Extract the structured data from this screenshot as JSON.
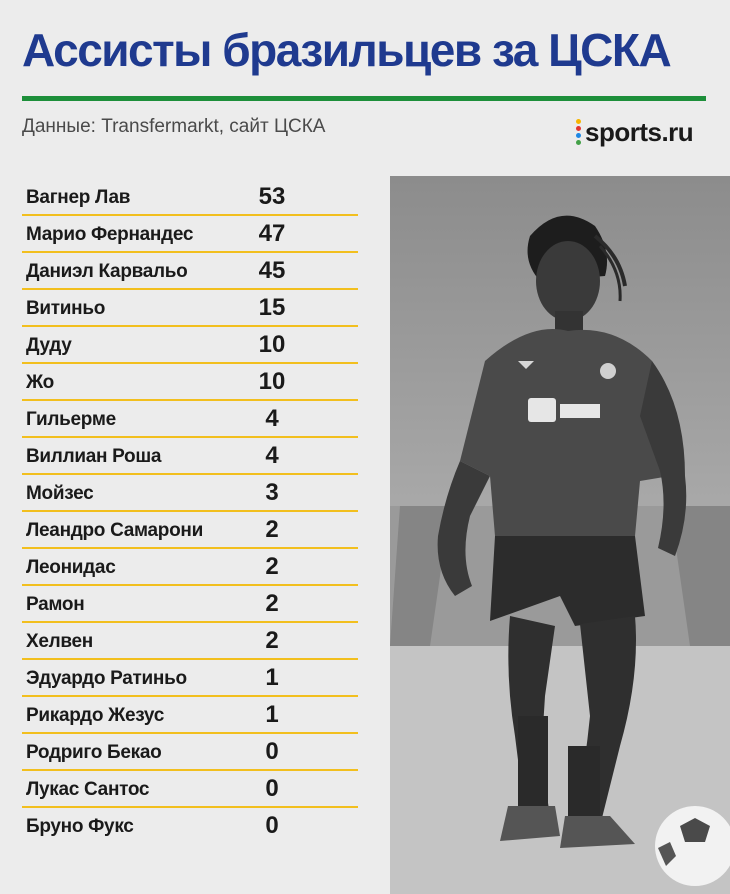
{
  "title": "Ассисты бразильцев за ЦСКА",
  "source": "Данные: Transfermarkt, сайт ЦСКА",
  "logo": {
    "text": "sports.ru",
    "dot_colors": [
      "#f7b500",
      "#e3342f",
      "#1e88e5",
      "#43a047"
    ]
  },
  "colors": {
    "title": "#1f3a8f",
    "rule": "#1d8f3a",
    "row_divider": "#f2bf1e"
  },
  "chart_data": {
    "type": "table",
    "columns": [
      "",
      ""
    ],
    "rows": [
      {
        "player": "Вагнер Лав",
        "assists": "53"
      },
      {
        "player": "Марио Фернандес",
        "assists": "47"
      },
      {
        "player": "Даниэл Карвальо",
        "assists": "45"
      },
      {
        "player": "Витиньо",
        "assists": "15"
      },
      {
        "player": "Дуду",
        "assists": "10"
      },
      {
        "player": "Жо",
        "assists": "10"
      },
      {
        "player": "Гильерме",
        "assists": "4"
      },
      {
        "player": "Виллиан Роша",
        "assists": "4"
      },
      {
        "player": "Мойзес",
        "assists": "3"
      },
      {
        "player": "Леандро Самарони",
        "assists": "2"
      },
      {
        "player": "Леонидас",
        "assists": "2"
      },
      {
        "player": "Рамон",
        "assists": "2"
      },
      {
        "player": "Хелвен",
        "assists": "2"
      },
      {
        "player": "Эдуардо Ратиньо",
        "assists": "1"
      },
      {
        "player": "Рикардо Жезус",
        "assists": "1"
      },
      {
        "player": "Родриго Бекао",
        "assists": "0"
      },
      {
        "player": "Лукас Сантос",
        "assists": "0"
      },
      {
        "player": "Бруно Фукс",
        "assists": "0"
      }
    ]
  }
}
